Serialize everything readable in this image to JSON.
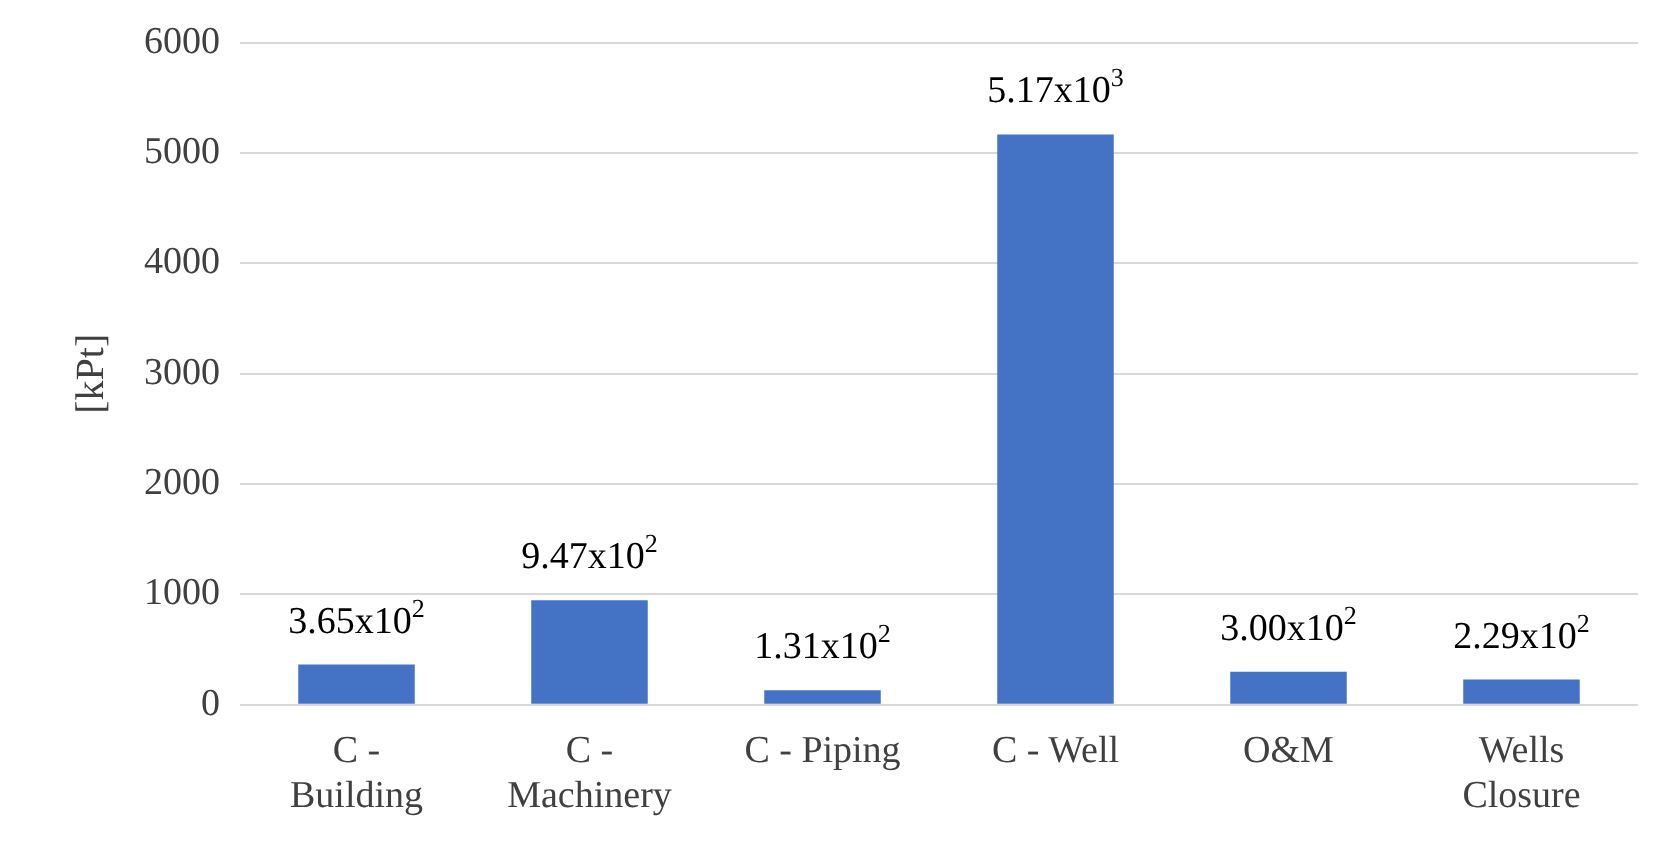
{
  "chart_data": {
    "type": "bar",
    "ylabel": "[kPt]",
    "categories": [
      "C -\nBuilding",
      "C -\nMachinery",
      "C - Piping",
      "C - Well",
      "O&M",
      "Wells\nClosure"
    ],
    "values": [
      365,
      947,
      131,
      5170,
      300,
      229
    ],
    "value_labels": [
      "3.65x10$^{2}$",
      "9.47x10$^{2}$",
      "1.31x10$^{2}$",
      "5.17x10$^{3}$",
      "3.00x10$^{2}$",
      "2.29x10$^{2}$"
    ],
    "color": "#4472c4",
    "ylim": [
      0,
      6000
    ],
    "yticks": [
      0,
      1000,
      2000,
      3000,
      4000,
      5000,
      6000
    ],
    "grid": "y",
    "legend": false
  }
}
